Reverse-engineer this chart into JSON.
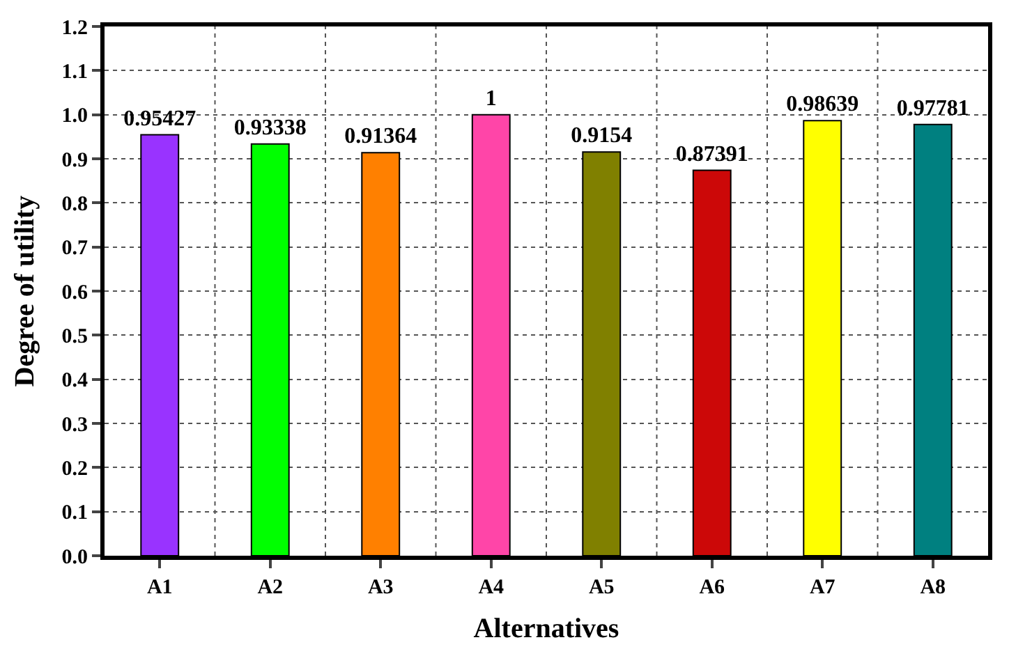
{
  "chart_data": {
    "type": "bar",
    "xlabel": "Alternatives",
    "ylabel": "Degree of utility",
    "categories": [
      "A1",
      "A2",
      "A3",
      "A4",
      "A5",
      "A6",
      "A7",
      "A8"
    ],
    "values": [
      0.95427,
      0.93338,
      0.91364,
      1,
      0.9154,
      0.87391,
      0.98639,
      0.97781
    ],
    "colors": [
      "#9933ff",
      "#00ff00",
      "#ff8000",
      "#ff45a8",
      "#808000",
      "#cc0808",
      "#ffff00",
      "#008080"
    ],
    "ylim": [
      0,
      1.2
    ],
    "yticks": [
      {
        "value": 0,
        "label": "0.0"
      },
      0.1,
      0.2,
      0.3,
      0.4,
      0.5,
      0.6,
      0.7,
      0.8,
      0.9,
      {
        "value": 1,
        "label": "1.0"
      },
      1.1,
      1.2
    ],
    "grid": true,
    "data_labels": true
  }
}
